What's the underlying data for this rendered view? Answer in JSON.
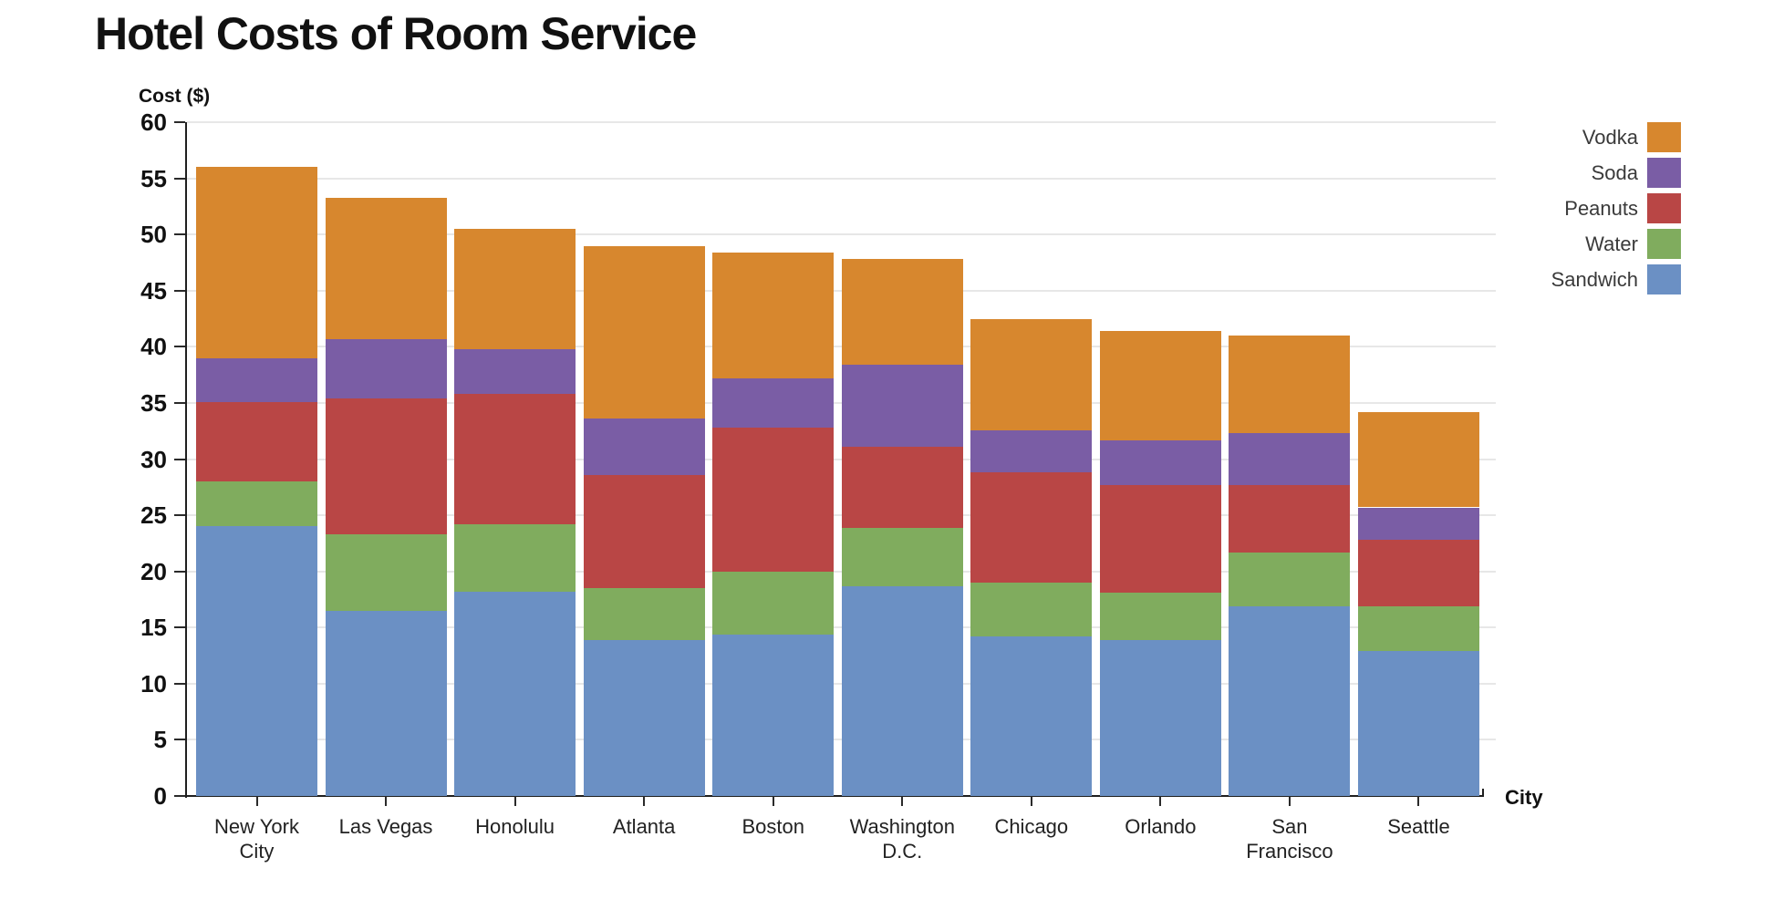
{
  "title": "Hotel Costs of Room Service",
  "y_axis": {
    "title": "Cost ($)",
    "ticks": [
      0,
      5,
      10,
      15,
      20,
      25,
      30,
      35,
      40,
      45,
      50,
      55,
      60
    ]
  },
  "x_axis": {
    "title": "City"
  },
  "legend": {
    "order": [
      "Vodka",
      "Soda",
      "Peanuts",
      "Water",
      "Sandwich"
    ]
  },
  "chart_data": {
    "type": "bar",
    "stacked": true,
    "title": "Hotel Costs of Room Service",
    "xlabel": "City",
    "ylabel": "Cost ($)",
    "ylim": [
      0,
      60
    ],
    "grid": true,
    "legend_position": "top-right",
    "categories": [
      "New York\nCity",
      "Las Vegas",
      "Honolulu",
      "Atlanta",
      "Boston",
      "Washington\nD.C.",
      "Chicago",
      "Orlando",
      "San\nFrancisco",
      "Seattle"
    ],
    "series": [
      {
        "name": "Sandwich",
        "color": "#6b90c4",
        "values": [
          24.0,
          16.5,
          18.2,
          13.9,
          14.4,
          18.7,
          14.2,
          13.9,
          16.9,
          12.9
        ]
      },
      {
        "name": "Water",
        "color": "#80ac5e",
        "values": [
          4.0,
          6.8,
          6.0,
          4.6,
          5.6,
          5.2,
          4.8,
          4.2,
          4.8,
          4.0
        ]
      },
      {
        "name": "Peanuts",
        "color": "#b94645",
        "values": [
          7.1,
          12.1,
          11.6,
          10.1,
          12.8,
          7.2,
          9.8,
          9.6,
          6.0,
          5.9
        ]
      },
      {
        "name": "Soda",
        "color": "#7a5da5",
        "values": [
          3.9,
          5.3,
          4.0,
          5.0,
          4.4,
          7.3,
          3.8,
          4.0,
          4.6,
          2.9
        ]
      },
      {
        "name": "Vodka",
        "color": "#d7872e",
        "values": [
          17.0,
          12.6,
          10.7,
          15.4,
          11.2,
          9.4,
          9.9,
          9.7,
          8.7,
          8.5
        ]
      }
    ],
    "totals": [
      56.0,
      53.3,
      50.5,
      49.0,
      48.4,
      47.8,
      42.5,
      41.4,
      41.0,
      34.2
    ]
  }
}
